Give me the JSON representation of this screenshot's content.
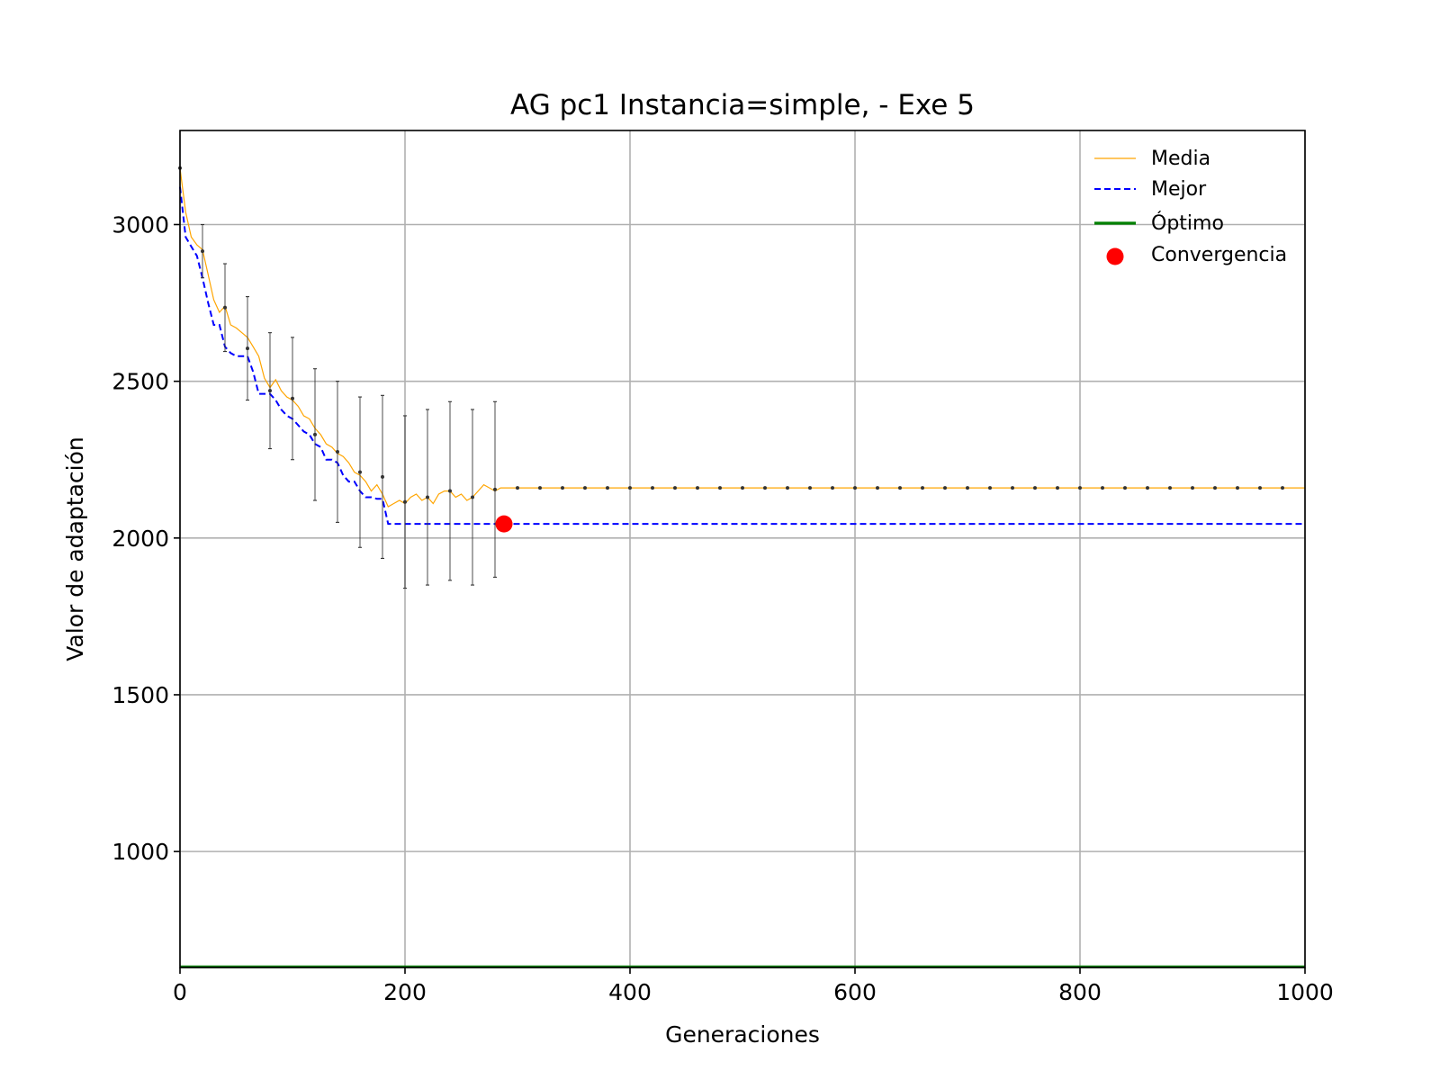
{
  "chart_data": {
    "type": "line",
    "title": "AG pc1 Instancia=simple, - Exe 5",
    "xlabel": "Generaciones",
    "ylabel": "Valor de adaptación",
    "xlim": [
      0,
      1000
    ],
    "ylim": [
      630,
      3300
    ],
    "xticks": [
      0,
      200,
      400,
      600,
      800,
      1000
    ],
    "yticks": [
      1000,
      1500,
      2000,
      2500,
      3000
    ],
    "grid": true,
    "legend_position": "top-right",
    "series": [
      {
        "name": "Media",
        "color": "#ffa500",
        "style": "solid-thin",
        "x": [
          0,
          5,
          10,
          15,
          20,
          25,
          30,
          35,
          40,
          45,
          50,
          55,
          60,
          65,
          70,
          75,
          80,
          85,
          90,
          95,
          100,
          105,
          110,
          115,
          120,
          125,
          130,
          135,
          140,
          145,
          150,
          155,
          160,
          165,
          170,
          175,
          180,
          185,
          190,
          195,
          200,
          205,
          210,
          215,
          220,
          225,
          230,
          235,
          240,
          245,
          250,
          255,
          260,
          265,
          270,
          275,
          280,
          285,
          290,
          1000
        ],
        "y": [
          3180,
          3040,
          2960,
          2935,
          2920,
          2840,
          2760,
          2720,
          2740,
          2680,
          2670,
          2655,
          2640,
          2610,
          2580,
          2510,
          2480,
          2505,
          2470,
          2450,
          2440,
          2420,
          2390,
          2380,
          2350,
          2330,
          2300,
          2290,
          2270,
          2260,
          2240,
          2210,
          2200,
          2180,
          2150,
          2170,
          2140,
          2100,
          2110,
          2120,
          2110,
          2130,
          2140,
          2120,
          2130,
          2110,
          2140,
          2150,
          2150,
          2130,
          2140,
          2120,
          2130,
          2150,
          2170,
          2160,
          2150,
          2160,
          2160,
          2160
        ]
      },
      {
        "name": "Mejor",
        "color": "#0000ff",
        "style": "dashed",
        "x": [
          0,
          5,
          10,
          15,
          20,
          25,
          30,
          35,
          40,
          45,
          50,
          55,
          60,
          65,
          70,
          75,
          80,
          85,
          90,
          95,
          100,
          105,
          110,
          115,
          120,
          125,
          130,
          135,
          140,
          145,
          150,
          155,
          160,
          165,
          170,
          175,
          180,
          185,
          190,
          1000
        ],
        "y": [
          3120,
          2960,
          2930,
          2900,
          2830,
          2750,
          2680,
          2680,
          2610,
          2590,
          2580,
          2580,
          2580,
          2530,
          2460,
          2460,
          2460,
          2440,
          2410,
          2390,
          2380,
          2360,
          2340,
          2330,
          2300,
          2290,
          2250,
          2250,
          2240,
          2200,
          2180,
          2180,
          2150,
          2130,
          2130,
          2125,
          2125,
          2045,
          2045,
          2045
        ]
      },
      {
        "name": "Óptimo",
        "color": "#008000",
        "style": "solid-thick",
        "x": [
          0,
          1000
        ],
        "y": [
          632,
          632
        ]
      }
    ],
    "error_bars": {
      "x": [
        0,
        20,
        40,
        60,
        80,
        100,
        120,
        140,
        160,
        180,
        200,
        220,
        240,
        260,
        280,
        300,
        320,
        340,
        360,
        380,
        400,
        420,
        440,
        460,
        480,
        500,
        520,
        540,
        560,
        580,
        600,
        620,
        640,
        660,
        680,
        700,
        720,
        740,
        760,
        780,
        800,
        820,
        840,
        860,
        880,
        900,
        920,
        940,
        960,
        980
      ],
      "y": [
        3180,
        2915,
        2735,
        2605,
        2470,
        2445,
        2330,
        2275,
        2210,
        2195,
        2115,
        2130,
        2150,
        2130,
        2155,
        2160,
        2160,
        2160,
        2160,
        2160,
        2160,
        2160,
        2160,
        2160,
        2160,
        2160,
        2160,
        2160,
        2160,
        2160,
        2160,
        2160,
        2160,
        2160,
        2160,
        2160,
        2160,
        2160,
        2160,
        2160,
        2160,
        2160,
        2160,
        2160,
        2160,
        2160,
        2160,
        2160,
        2160,
        2160
      ],
      "err": [
        0,
        85,
        140,
        165,
        185,
        195,
        210,
        225,
        240,
        260,
        275,
        280,
        285,
        280,
        280,
        0,
        0,
        0,
        0,
        0,
        0,
        0,
        0,
        0,
        0,
        0,
        0,
        0,
        0,
        0,
        0,
        0,
        0,
        0,
        0,
        0,
        0,
        0,
        0,
        0,
        0,
        0,
        0,
        0,
        0,
        0,
        0,
        0,
        0,
        0
      ],
      "color": "#333333"
    },
    "convergence": {
      "name": "Convergencia",
      "color": "#ff0000",
      "x": 288,
      "y": 2045
    }
  }
}
